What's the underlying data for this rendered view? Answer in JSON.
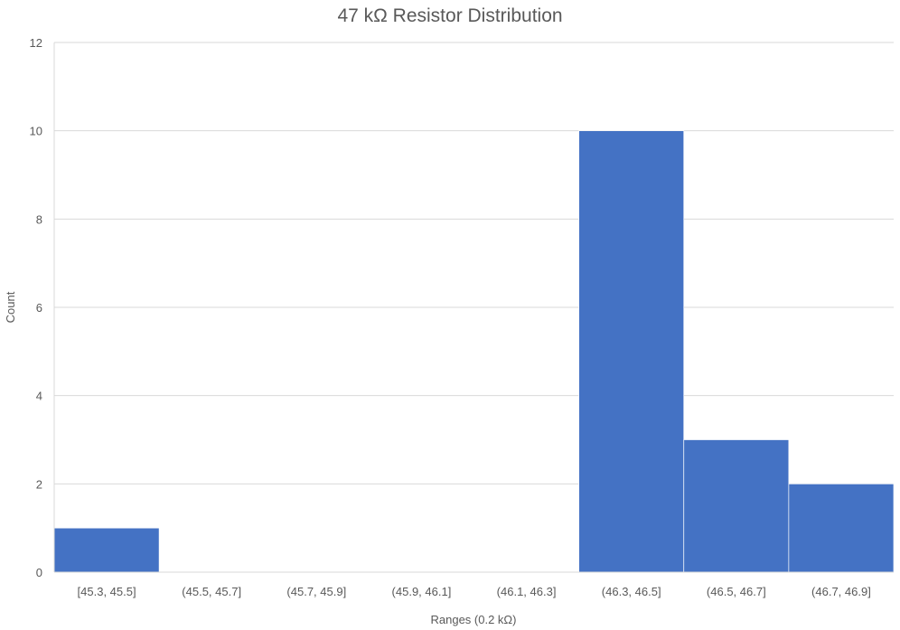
{
  "chart_data": {
    "type": "bar",
    "title": "47 kΩ Resistor Distribution",
    "xlabel": "Ranges (0.2 kΩ)",
    "ylabel": "Count",
    "categories": [
      "[45.3, 45.5]",
      "(45.5, 45.7]",
      "(45.7, 45.9]",
      "(45.9, 46.1]",
      "(46.1, 46.3]",
      "(46.3, 46.5]",
      "(46.5, 46.7]",
      "(46.7, 46.9]"
    ],
    "values": [
      1,
      0,
      0,
      0,
      0,
      10,
      3,
      2
    ],
    "ylim": [
      0,
      12
    ],
    "yticks": [
      0,
      2,
      4,
      6,
      8,
      10,
      12
    ],
    "grid": true,
    "bar_color": "#4472C4"
  }
}
